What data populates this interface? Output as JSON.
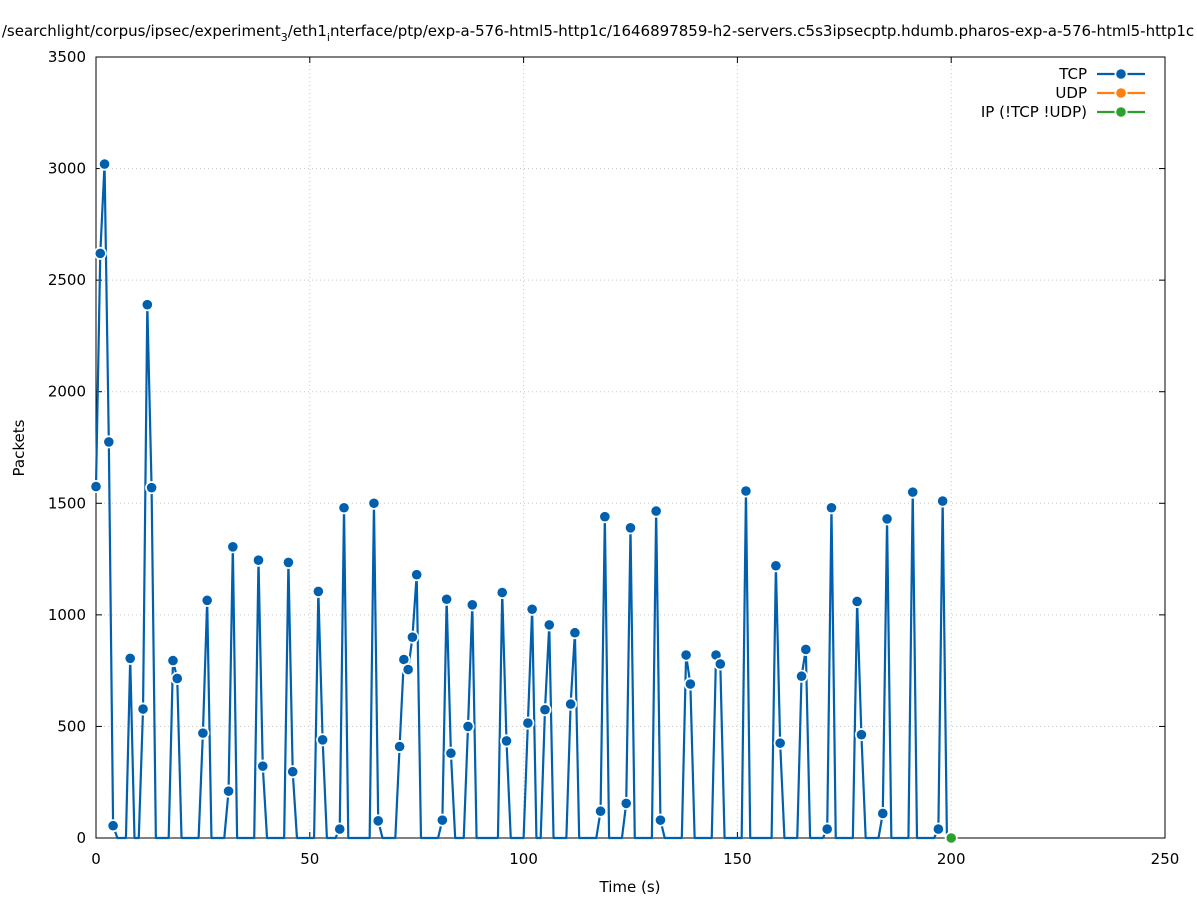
{
  "chart_data": {
    "type": "line",
    "title": "/searchlight/corpus/ipsec/experiment",
    "title_sub1": "3",
    "title_mid": "/eth1",
    "title_sub2": "i",
    "title_rest": "nterface/ptp/exp-a-576-html5-http1c/1646897859-h2-servers.c5s3ipsecptp.hdumb.pharos-exp-a-576-html5-http1c",
    "xlabel": "Time (s)",
    "ylabel": "Packets",
    "xlim": [
      0,
      250
    ],
    "ylim": [
      0,
      3500
    ],
    "xticks": [
      "0",
      "50",
      "100",
      "150",
      "200",
      "250"
    ],
    "yticks": [
      "0",
      "500",
      "1000",
      "1500",
      "2000",
      "2500",
      "3000",
      "3500"
    ],
    "grid": true,
    "legend_position": "top-right",
    "series": [
      {
        "name": "TCP",
        "color": "#0060ad",
        "points": [
          [
            0,
            1575
          ],
          [
            1,
            2620
          ],
          [
            2,
            3020
          ],
          [
            3,
            1775
          ],
          [
            4,
            55
          ],
          [
            5,
            0
          ],
          [
            6,
            0
          ],
          [
            7,
            0
          ],
          [
            8,
            805
          ],
          [
            9,
            0
          ],
          [
            10,
            0
          ],
          [
            11,
            578
          ],
          [
            12,
            2390
          ],
          [
            13,
            1570
          ],
          [
            14,
            0
          ],
          [
            15,
            0
          ],
          [
            16,
            0
          ],
          [
            17,
            0
          ],
          [
            18,
            795
          ],
          [
            19,
            715
          ],
          [
            20,
            0
          ],
          [
            21,
            0
          ],
          [
            22,
            0
          ],
          [
            23,
            0
          ],
          [
            24,
            0
          ],
          [
            25,
            470
          ],
          [
            26,
            1065
          ],
          [
            27,
            0
          ],
          [
            28,
            0
          ],
          [
            29,
            0
          ],
          [
            30,
            0
          ],
          [
            31,
            210
          ],
          [
            32,
            1305
          ],
          [
            33,
            0
          ],
          [
            34,
            0
          ],
          [
            35,
            0
          ],
          [
            36,
            0
          ],
          [
            37,
            0
          ],
          [
            38,
            1245
          ],
          [
            39,
            322
          ],
          [
            40,
            0
          ],
          [
            41,
            0
          ],
          [
            42,
            0
          ],
          [
            43,
            0
          ],
          [
            44,
            0
          ],
          [
            45,
            1235
          ],
          [
            46,
            297
          ],
          [
            47,
            0
          ],
          [
            48,
            0
          ],
          [
            49,
            0
          ],
          [
            50,
            0
          ],
          [
            51,
            0
          ],
          [
            52,
            1105
          ],
          [
            53,
            440
          ],
          [
            54,
            0
          ],
          [
            55,
            0
          ],
          [
            56,
            0
          ],
          [
            57,
            40
          ],
          [
            58,
            1480
          ],
          [
            59,
            0
          ],
          [
            60,
            0
          ],
          [
            61,
            0
          ],
          [
            62,
            0
          ],
          [
            63,
            0
          ],
          [
            64,
            0
          ],
          [
            65,
            1500
          ],
          [
            66,
            77
          ],
          [
            67,
            0
          ],
          [
            68,
            0
          ],
          [
            69,
            0
          ],
          [
            70,
            0
          ],
          [
            71,
            410
          ],
          [
            72,
            800
          ],
          [
            73,
            755
          ],
          [
            74,
            900
          ],
          [
            75,
            1180
          ],
          [
            76,
            0
          ],
          [
            77,
            0
          ],
          [
            78,
            0
          ],
          [
            79,
            0
          ],
          [
            80,
            0
          ],
          [
            81,
            80
          ],
          [
            82,
            1070
          ],
          [
            83,
            380
          ],
          [
            84,
            0
          ],
          [
            85,
            0
          ],
          [
            86,
            0
          ],
          [
            87,
            500
          ],
          [
            88,
            1045
          ],
          [
            89,
            0
          ],
          [
            90,
            0
          ],
          [
            91,
            0
          ],
          [
            92,
            0
          ],
          [
            93,
            0
          ],
          [
            94,
            0
          ],
          [
            95,
            1100
          ],
          [
            96,
            435
          ],
          [
            97,
            0
          ],
          [
            98,
            0
          ],
          [
            99,
            0
          ],
          [
            100,
            0
          ],
          [
            101,
            515
          ],
          [
            102,
            1025
          ],
          [
            103,
            0
          ],
          [
            104,
            0
          ],
          [
            105,
            575
          ],
          [
            106,
            955
          ],
          [
            107,
            0
          ],
          [
            108,
            0
          ],
          [
            109,
            0
          ],
          [
            110,
            0
          ],
          [
            111,
            600
          ],
          [
            112,
            920
          ],
          [
            113,
            0
          ],
          [
            114,
            0
          ],
          [
            115,
            0
          ],
          [
            116,
            0
          ],
          [
            117,
            0
          ],
          [
            118,
            120
          ],
          [
            119,
            1440
          ],
          [
            120,
            0
          ],
          [
            121,
            0
          ],
          [
            122,
            0
          ],
          [
            123,
            0
          ],
          [
            124,
            155
          ],
          [
            125,
            1390
          ],
          [
            126,
            0
          ],
          [
            127,
            0
          ],
          [
            128,
            0
          ],
          [
            129,
            0
          ],
          [
            130,
            0
          ],
          [
            131,
            1465
          ],
          [
            132,
            80
          ],
          [
            133,
            0
          ],
          [
            134,
            0
          ],
          [
            135,
            0
          ],
          [
            136,
            0
          ],
          [
            137,
            0
          ],
          [
            138,
            820
          ],
          [
            139,
            690
          ],
          [
            140,
            0
          ],
          [
            141,
            0
          ],
          [
            142,
            0
          ],
          [
            143,
            0
          ],
          [
            144,
            0
          ],
          [
            145,
            820
          ],
          [
            146,
            780
          ],
          [
            147,
            0
          ],
          [
            148,
            0
          ],
          [
            149,
            0
          ],
          [
            150,
            0
          ],
          [
            151,
            0
          ],
          [
            152,
            1555
          ],
          [
            153,
            0
          ],
          [
            154,
            0
          ],
          [
            155,
            0
          ],
          [
            156,
            0
          ],
          [
            157,
            0
          ],
          [
            158,
            0
          ],
          [
            159,
            1220
          ],
          [
            160,
            425
          ],
          [
            161,
            0
          ],
          [
            162,
            0
          ],
          [
            163,
            0
          ],
          [
            164,
            0
          ],
          [
            165,
            725
          ],
          [
            166,
            845
          ],
          [
            167,
            0
          ],
          [
            168,
            0
          ],
          [
            169,
            0
          ],
          [
            170,
            0
          ],
          [
            171,
            40
          ],
          [
            172,
            1480
          ],
          [
            173,
            0
          ],
          [
            174,
            0
          ],
          [
            175,
            0
          ],
          [
            176,
            0
          ],
          [
            177,
            0
          ],
          [
            178,
            1060
          ],
          [
            179,
            463
          ],
          [
            180,
            0
          ],
          [
            181,
            0
          ],
          [
            182,
            0
          ],
          [
            183,
            0
          ],
          [
            184,
            110
          ],
          [
            185,
            1430
          ],
          [
            186,
            0
          ],
          [
            187,
            0
          ],
          [
            188,
            0
          ],
          [
            189,
            0
          ],
          [
            190,
            0
          ],
          [
            191,
            1550
          ],
          [
            192,
            0
          ],
          [
            193,
            0
          ],
          [
            194,
            0
          ],
          [
            195,
            0
          ],
          [
            196,
            0
          ],
          [
            197,
            40
          ],
          [
            198,
            1510
          ],
          [
            199,
            0
          ]
        ]
      },
      {
        "name": "UDP",
        "color": "#ff7f0e",
        "points": []
      },
      {
        "name": "IP (!TCP  !UDP)",
        "color": "#2ca02c",
        "points": [
          [
            200,
            0
          ]
        ]
      }
    ]
  }
}
